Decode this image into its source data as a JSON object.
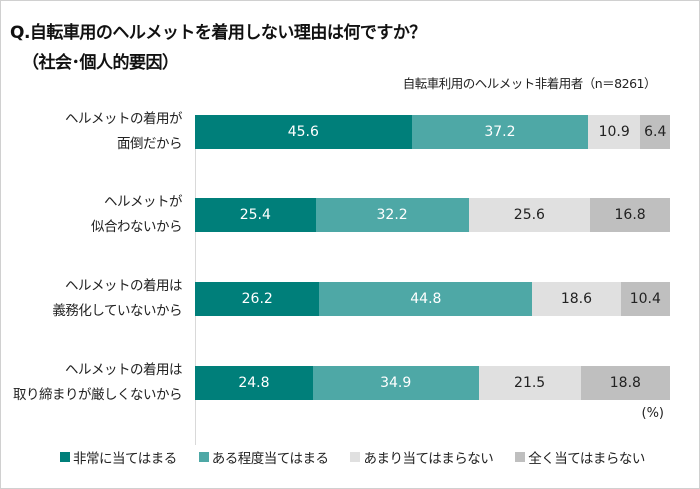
{
  "chart_data": {
    "type": "bar",
    "orientation": "horizontal",
    "stacked": true,
    "title": "Q.自転車用のヘルメットを着用しない理由は何ですか？",
    "title2": "（社会･個人的要因）",
    "subtitle": "自転車利用のヘルメット非着用者（n＝8261）",
    "unit": "(%)",
    "xlim": [
      0,
      100
    ],
    "categories": [
      [
        "ヘルメットの着用が",
        "面倒だから"
      ],
      [
        "ヘルメットが",
        "似合わないから"
      ],
      [
        "ヘルメットの着用は",
        "義務化していないから"
      ],
      [
        "ヘルメットの着用は",
        "取り締まりが厳しくないから"
      ]
    ],
    "series": [
      {
        "name": "非常に当てはまる",
        "color": "#007f7a",
        "text_color": "#ffffff",
        "values": [
          45.6,
          25.4,
          26.2,
          24.8
        ]
      },
      {
        "name": "ある程度当てはまる",
        "color": "#4ea8a6",
        "text_color": "#ffffff",
        "values": [
          37.2,
          32.2,
          44.8,
          34.9
        ]
      },
      {
        "name": "あまり当てはまらない",
        "color": "#e0e0e0",
        "text_color": "#222222",
        "values": [
          10.9,
          25.6,
          18.6,
          21.5
        ]
      },
      {
        "name": "全く当てはまらない",
        "color": "#bfbfbf",
        "text_color": "#222222",
        "values": [
          6.4,
          16.8,
          10.4,
          18.8
        ]
      }
    ],
    "legend_position": "bottom"
  }
}
